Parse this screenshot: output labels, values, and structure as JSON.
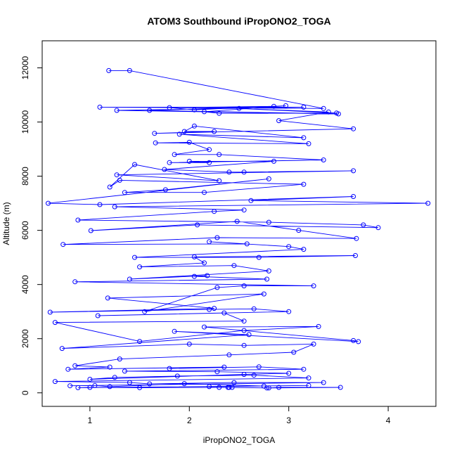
{
  "chart_data": {
    "type": "line",
    "title": "ATOM3 Southbound iPropONO2_TOGA",
    "xlabel": "iPropONO2_TOGA",
    "ylabel": "Altitude (m)",
    "xlim": [
      0.52,
      4.48
    ],
    "ylim": [
      -500,
      13000
    ],
    "x_ticks": [
      1,
      2,
      3,
      4
    ],
    "y_ticks": [
      0,
      2000,
      4000,
      6000,
      8000,
      10000,
      12000
    ],
    "grid": false,
    "legend": "none",
    "marker": "open-circle",
    "series_color": "#0000ff",
    "series": [
      {
        "points": [
          [
            1.19,
            11900
          ],
          [
            1.4,
            11900
          ],
          [
            3.35,
            10500
          ],
          [
            1.1,
            10550
          ],
          [
            3.15,
            10550
          ],
          [
            1.27,
            10430
          ],
          [
            3.5,
            10300
          ],
          [
            1.6,
            10430
          ],
          [
            2.85,
            10580
          ],
          [
            1.8,
            10530
          ],
          [
            2.05,
            10450
          ],
          [
            2.97,
            10600
          ],
          [
            2.15,
            10380
          ],
          [
            2.3,
            10320
          ],
          [
            3.48,
            10330
          ],
          [
            2.5,
            10500
          ],
          [
            3.4,
            10370
          ],
          [
            2.9,
            10050
          ],
          [
            3.65,
            9750
          ],
          [
            1.65,
            9580
          ],
          [
            2.25,
            9650
          ],
          [
            1.95,
            9650
          ],
          [
            2.05,
            9850
          ],
          [
            3.15,
            9420
          ],
          [
            1.9,
            9550
          ],
          [
            3.2,
            9200
          ],
          [
            1.66,
            9230
          ],
          [
            2.0,
            9250
          ],
          [
            2.2,
            8980
          ],
          [
            1.85,
            8800
          ],
          [
            2.3,
            8800
          ],
          [
            3.35,
            8600
          ],
          [
            1.8,
            8500
          ],
          [
            2.2,
            8500
          ],
          [
            2.0,
            8550
          ],
          [
            2.85,
            8550
          ],
          [
            1.75,
            8250
          ],
          [
            2.4,
            8150
          ],
          [
            2.55,
            8150
          ],
          [
            3.65,
            8200
          ],
          [
            1.27,
            8050
          ],
          [
            2.3,
            7830
          ],
          [
            1.45,
            8430
          ],
          [
            1.2,
            7600
          ],
          [
            1.3,
            7850
          ],
          [
            3.15,
            7700
          ],
          [
            2.15,
            7400
          ],
          [
            1.35,
            7400
          ],
          [
            1.76,
            7500
          ],
          [
            2.8,
            7900
          ],
          [
            0.58,
            7000
          ],
          [
            1.1,
            6950
          ],
          [
            3.65,
            7250
          ],
          [
            2.62,
            7100
          ],
          [
            4.4,
            7000
          ],
          [
            1.25,
            6870
          ],
          [
            2.55,
            6750
          ],
          [
            2.25,
            6700
          ],
          [
            0.88,
            6380
          ],
          [
            2.8,
            6300
          ],
          [
            3.75,
            6200
          ],
          [
            3.9,
            6100
          ],
          [
            2.08,
            6200
          ],
          [
            1.01,
            5990
          ],
          [
            2.48,
            6330
          ],
          [
            3.1,
            6000
          ],
          [
            3.68,
            5700
          ],
          [
            2.28,
            5730
          ],
          [
            0.73,
            5480
          ],
          [
            2.58,
            5500
          ],
          [
            2.2,
            5580
          ],
          [
            3.0,
            5400
          ],
          [
            3.15,
            5300
          ],
          [
            1.45,
            5000
          ],
          [
            2.7,
            5000
          ],
          [
            3.67,
            5070
          ],
          [
            2.05,
            5020
          ],
          [
            2.15,
            4800
          ],
          [
            1.5,
            4650
          ],
          [
            2.45,
            4700
          ],
          [
            2.8,
            4500
          ],
          [
            1.4,
            4200
          ],
          [
            2.18,
            4330
          ],
          [
            2.05,
            4300
          ],
          [
            2.78,
            4200
          ],
          [
            0.85,
            4100
          ],
          [
            3.25,
            3950
          ],
          [
            2.55,
            3950
          ],
          [
            2.28,
            3890
          ],
          [
            1.55,
            3000
          ],
          [
            2.75,
            3650
          ],
          [
            1.18,
            3500
          ],
          [
            2.25,
            3120
          ],
          [
            0.6,
            2980
          ],
          [
            2.2,
            3080
          ],
          [
            2.65,
            3100
          ],
          [
            3.0,
            3000
          ],
          [
            1.08,
            2850
          ],
          [
            2.35,
            2950
          ],
          [
            2.55,
            2650
          ],
          [
            0.65,
            2600
          ],
          [
            1.5,
            1900
          ],
          [
            2.55,
            2300
          ],
          [
            3.3,
            2450
          ],
          [
            2.15,
            2430
          ],
          [
            3.65,
            1930
          ],
          [
            3.7,
            1890
          ],
          [
            1.85,
            2270
          ],
          [
            2.6,
            2150
          ],
          [
            0.72,
            1640
          ],
          [
            2.0,
            1800
          ],
          [
            2.55,
            1750
          ],
          [
            3.25,
            1800
          ],
          [
            3.05,
            1500
          ],
          [
            2.4,
            1400
          ],
          [
            1.3,
            1250
          ],
          [
            0.85,
            1000
          ],
          [
            1.2,
            950
          ],
          [
            0.78,
            870
          ],
          [
            2.35,
            950
          ],
          [
            1.8,
            900
          ],
          [
            2.7,
            960
          ],
          [
            3.15,
            870
          ],
          [
            1.35,
            800
          ],
          [
            2.28,
            780
          ],
          [
            3.0,
            720
          ],
          [
            2.55,
            680
          ],
          [
            1.0,
            500
          ],
          [
            1.25,
            570
          ],
          [
            1.88,
            620
          ],
          [
            2.65,
            650
          ],
          [
            3.2,
            550
          ],
          [
            0.65,
            420
          ],
          [
            1.4,
            380
          ],
          [
            1.6,
            330
          ],
          [
            2.45,
            380
          ],
          [
            3.35,
            380
          ],
          [
            0.8,
            260
          ],
          [
            1.05,
            270
          ],
          [
            1.2,
            230
          ],
          [
            1.95,
            340
          ],
          [
            2.75,
            250
          ],
          [
            2.2,
            230
          ],
          [
            3.2,
            270
          ],
          [
            0.88,
            190
          ],
          [
            1.0,
            200
          ],
          [
            1.5,
            190
          ],
          [
            2.3,
            200
          ],
          [
            2.4,
            200
          ],
          [
            2.8,
            180
          ],
          [
            2.9,
            200
          ],
          [
            3.52,
            200
          ],
          [
            2.78,
            180
          ],
          [
            2.39,
            200
          ],
          [
            2.43,
            200
          ]
        ]
      }
    ]
  }
}
